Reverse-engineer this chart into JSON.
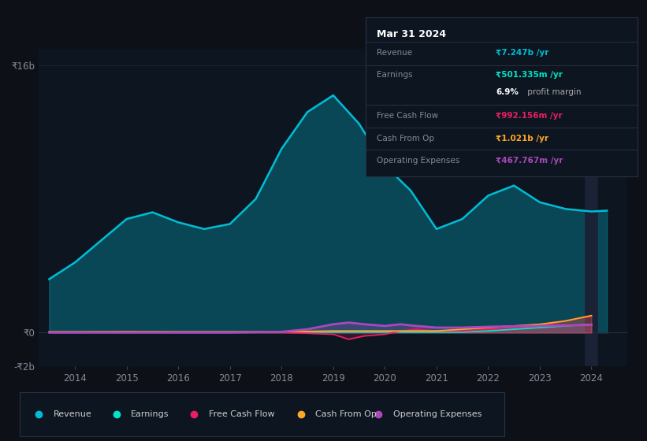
{
  "bg_color": "#0d1117",
  "plot_bg_color": "#0d1520",
  "title": "Mar 31 2024",
  "info_box_title": "Mar 31 2024",
  "info_rows": [
    {
      "label": "Revenue",
      "value": "₹7.247b /yr",
      "color": "#00bcd4"
    },
    {
      "label": "Earnings",
      "value": "₹501.335m /yr",
      "color": "#00e5c8"
    },
    {
      "label": "",
      "value": "6.9% profit margin",
      "color": "#ffffff"
    },
    {
      "label": "Free Cash Flow",
      "value": "₹992.156m /yr",
      "color": "#e91e63"
    },
    {
      "label": "Cash From Op",
      "value": "₹1.021b /yr",
      "color": "#ffa726"
    },
    {
      "label": "Operating Expenses",
      "value": "₹467.767m /yr",
      "color": "#ab47bc"
    }
  ],
  "ylim": [
    -2000000000,
    17000000000
  ],
  "xlim": [
    2013.3,
    2024.7
  ],
  "ytick_vals": [
    -2000000000,
    0,
    16000000000
  ],
  "ytick_labels": [
    "-₹2b",
    "₹0",
    "₹16b"
  ],
  "xtick_vals": [
    2014,
    2015,
    2016,
    2017,
    2018,
    2019,
    2020,
    2021,
    2022,
    2023,
    2024
  ],
  "xtick_labels": [
    "2014",
    "2015",
    "2016",
    "2017",
    "2018",
    "2019",
    "2020",
    "2021",
    "2022",
    "2023",
    "2024"
  ],
  "revenue_color": "#00bcd4",
  "earnings_color": "#00e5c8",
  "fcf_color": "#e91e63",
  "cashfromop_color": "#ffa726",
  "opex_color": "#ab47bc",
  "revenue_x": [
    2013.5,
    2014.0,
    2014.5,
    2015.0,
    2015.5,
    2016.0,
    2016.5,
    2017.0,
    2017.5,
    2018.0,
    2018.5,
    2019.0,
    2019.5,
    2020.0,
    2020.5,
    2021.0,
    2021.5,
    2022.0,
    2022.5,
    2023.0,
    2023.5,
    2024.0,
    2024.3
  ],
  "revenue_y": [
    3200000000,
    4200000000,
    5500000000,
    6800000000,
    7200000000,
    6600000000,
    6200000000,
    6500000000,
    8000000000,
    11000000000,
    13200000000,
    14200000000,
    12500000000,
    10000000000,
    8500000000,
    6200000000,
    6800000000,
    8200000000,
    8800000000,
    7800000000,
    7400000000,
    7247000000,
    7300000000
  ],
  "earnings_x": [
    2013.5,
    2014.0,
    2015.0,
    2016.0,
    2017.0,
    2018.0,
    2019.0,
    2019.5,
    2020.0,
    2020.5,
    2021.0,
    2021.5,
    2022.0,
    2022.5,
    2023.0,
    2023.5,
    2024.0
  ],
  "earnings_y": [
    30000000,
    30000000,
    35000000,
    30000000,
    30000000,
    30000000,
    30000000,
    30000000,
    30000000,
    30000000,
    30000000,
    30000000,
    100000000,
    200000000,
    300000000,
    400000000,
    501000000
  ],
  "fcf_x": [
    2013.5,
    2014.0,
    2015.0,
    2016.0,
    2017.0,
    2018.0,
    2019.0,
    2019.3,
    2019.6,
    2020.0,
    2020.3,
    2020.6,
    2021.0,
    2021.5,
    2022.0,
    2022.5,
    2023.0,
    2023.5,
    2024.0
  ],
  "fcf_y": [
    20000000,
    20000000,
    20000000,
    20000000,
    20000000,
    20000000,
    -100000000,
    -400000000,
    -200000000,
    -100000000,
    100000000,
    200000000,
    100000000,
    100000000,
    200000000,
    300000000,
    400000000,
    700000000,
    992000000
  ],
  "cashfromop_x": [
    2013.5,
    2014.0,
    2015.0,
    2016.0,
    2017.0,
    2018.0,
    2019.0,
    2019.5,
    2020.0,
    2020.5,
    2021.0,
    2021.5,
    2022.0,
    2022.5,
    2023.0,
    2023.5,
    2024.0
  ],
  "cashfromop_y": [
    50000000,
    50000000,
    60000000,
    50000000,
    50000000,
    50000000,
    100000000,
    100000000,
    100000000,
    100000000,
    100000000,
    200000000,
    300000000,
    400000000,
    500000000,
    700000000,
    1021000000
  ],
  "opex_x": [
    2013.5,
    2014.0,
    2015.0,
    2016.0,
    2017.0,
    2018.0,
    2018.5,
    2019.0,
    2019.3,
    2019.6,
    2020.0,
    2020.3,
    2020.6,
    2021.0,
    2021.5,
    2022.0,
    2022.5,
    2023.0,
    2023.5,
    2024.0
  ],
  "opex_y": [
    10000000,
    10000000,
    10000000,
    10000000,
    10000000,
    50000000,
    200000000,
    500000000,
    600000000,
    500000000,
    400000000,
    500000000,
    400000000,
    300000000,
    300000000,
    350000000,
    380000000,
    400000000,
    430000000,
    468000000
  ],
  "legend": [
    {
      "label": "Revenue",
      "color": "#00bcd4"
    },
    {
      "label": "Earnings",
      "color": "#00e5c8"
    },
    {
      "label": "Free Cash Flow",
      "color": "#e91e63"
    },
    {
      "label": "Cash From Op",
      "color": "#ffa726"
    },
    {
      "label": "Operating Expenses",
      "color": "#ab47bc"
    }
  ]
}
